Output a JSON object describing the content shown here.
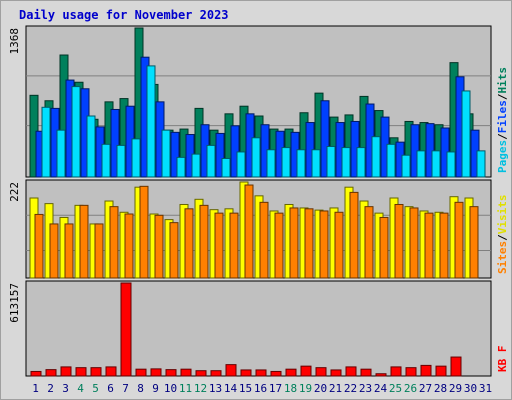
{
  "title": "Daily usage for November 2023",
  "colors": {
    "hits": "#00805c",
    "files": "#0040ff",
    "pages": "#00e0ff",
    "visits": "#ffff00",
    "sites": "#ff8000",
    "kbytes": "#ff0000",
    "weekend_day": "#00805c",
    "weekday": "#000080"
  },
  "chart_data": [
    {
      "type": "bar",
      "ymax_label": "1368",
      "ylim": [
        0,
        1368
      ],
      "grid": true,
      "right_labels": [
        {
          "text": "Pages",
          "color": "#00c0e0"
        },
        {
          "text": "/",
          "color": "#000000"
        },
        {
          "text": "Files",
          "color": "#0040ff"
        },
        {
          "text": "/",
          "color": "#000000"
        },
        {
          "text": "Hits",
          "color": "#00805c"
        }
      ],
      "series": [
        {
          "key": "hits",
          "values": [
            750,
            700,
            1120,
            870,
            530,
            690,
            720,
            1368,
            850,
            430,
            440,
            630,
            430,
            580,
            650,
            560,
            440,
            440,
            590,
            770,
            550,
            570,
            740,
            610,
            360,
            510,
            500,
            480,
            1050,
            580
          ]
        },
        {
          "key": "files",
          "values": [
            420,
            630,
            890,
            810,
            460,
            620,
            650,
            1100,
            690,
            410,
            390,
            480,
            400,
            470,
            580,
            480,
            420,
            410,
            500,
            700,
            500,
            510,
            670,
            550,
            320,
            480,
            490,
            450,
            920,
            430
          ]
        },
        {
          "key": "pages",
          "values": [
            640,
            430,
            830,
            560,
            300,
            290,
            350,
            1020,
            430,
            180,
            210,
            290,
            170,
            230,
            360,
            250,
            270,
            250,
            250,
            280,
            270,
            270,
            370,
            300,
            200,
            240,
            240,
            230,
            790,
            240
          ]
        }
      ]
    },
    {
      "type": "bar",
      "ymax_label": "222",
      "ylim": [
        0,
        222
      ],
      "grid": true,
      "right_labels": [
        {
          "text": "Sites",
          "color": "#ff8000"
        },
        {
          "text": "/",
          "color": "#000000"
        },
        {
          "text": "Visits",
          "color": "#e0e000"
        }
      ],
      "series": [
        {
          "key": "visits",
          "values": [
            185,
            172,
            140,
            168,
            125,
            178,
            152,
            210,
            148,
            135,
            170,
            182,
            158,
            160,
            222,
            190,
            155,
            170,
            162,
            157,
            162,
            210,
            178,
            150,
            185,
            165,
            155,
            152,
            188,
            185
          ]
        },
        {
          "key": "sites",
          "values": [
            147,
            125,
            125,
            168,
            125,
            165,
            148,
            212,
            145,
            128,
            160,
            168,
            150,
            150,
            215,
            175,
            150,
            162,
            160,
            155,
            152,
            198,
            165,
            140,
            170,
            162,
            150,
            150,
            175,
            165
          ]
        }
      ]
    },
    {
      "type": "bar",
      "ymax_label": "613157",
      "ylim": [
        0,
        613157
      ],
      "grid": true,
      "right_labels": [
        {
          "text": "KB F",
          "color": "#ff0000"
        }
      ],
      "series": [
        {
          "key": "kbytes",
          "values": [
            30000,
            42000,
            60000,
            55000,
            55000,
            60000,
            613157,
            45000,
            47000,
            42000,
            45000,
            35000,
            35000,
            75000,
            40000,
            40000,
            30000,
            45000,
            65000,
            55000,
            40000,
            60000,
            45000,
            15000,
            60000,
            55000,
            70000,
            65000,
            125000,
            0
          ]
        }
      ]
    }
  ],
  "x_labels": [
    {
      "text": "1",
      "weekend": false
    },
    {
      "text": "2",
      "weekend": false
    },
    {
      "text": "3",
      "weekend": false
    },
    {
      "text": "4",
      "weekend": true
    },
    {
      "text": "5",
      "weekend": true
    },
    {
      "text": "6",
      "weekend": false
    },
    {
      "text": "7",
      "weekend": false
    },
    {
      "text": "8",
      "weekend": false
    },
    {
      "text": "9",
      "weekend": false
    },
    {
      "text": "10",
      "weekend": false
    },
    {
      "text": "11",
      "weekend": true
    },
    {
      "text": "12",
      "weekend": true
    },
    {
      "text": "13",
      "weekend": false
    },
    {
      "text": "14",
      "weekend": false
    },
    {
      "text": "15",
      "weekend": false
    },
    {
      "text": "16",
      "weekend": false
    },
    {
      "text": "17",
      "weekend": false
    },
    {
      "text": "18",
      "weekend": true
    },
    {
      "text": "19",
      "weekend": true
    },
    {
      "text": "20",
      "weekend": false
    },
    {
      "text": "21",
      "weekend": false
    },
    {
      "text": "22",
      "weekend": false
    },
    {
      "text": "23",
      "weekend": false
    },
    {
      "text": "24",
      "weekend": false
    },
    {
      "text": "25",
      "weekend": true
    },
    {
      "text": "26",
      "weekend": true
    },
    {
      "text": "27",
      "weekend": false
    },
    {
      "text": "28",
      "weekend": false
    },
    {
      "text": "29",
      "weekend": false
    },
    {
      "text": "30",
      "weekend": false
    },
    {
      "text": "31",
      "weekend": false
    }
  ]
}
